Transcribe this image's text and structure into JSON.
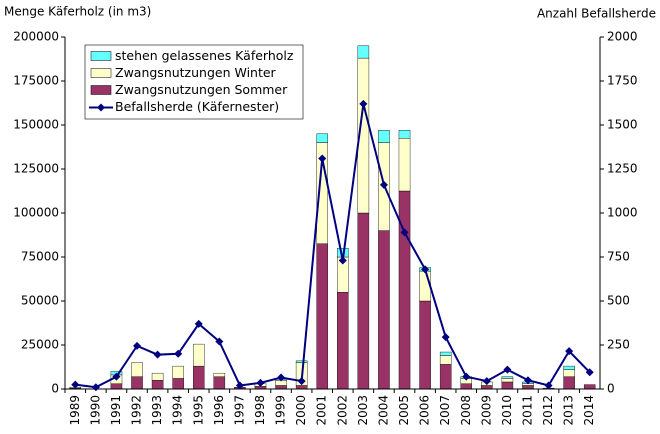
{
  "chart_data": {
    "type": "bar",
    "ylabel": "Menge Käferholz (in m3)",
    "y2label": "Anzahl Befallsherde",
    "categories": [
      "1989",
      "1990",
      "1991",
      "1992",
      "1993",
      "1994",
      "1995",
      "1996",
      "1997",
      "1998",
      "1999",
      "2000",
      "2001",
      "2002",
      "2003",
      "2004",
      "2005",
      "2006",
      "2007",
      "2008",
      "2009",
      "2010",
      "2011",
      "2012",
      "2013",
      "2014"
    ],
    "series": [
      {
        "name": "stehen gelassenes Käferholz",
        "type": "bar",
        "color": "#66ffff",
        "values": [
          0,
          0,
          2000,
          0,
          0,
          0,
          0,
          0,
          0,
          0,
          500,
          1000,
          5000,
          5000,
          7000,
          7000,
          4500,
          2000,
          2000,
          1000,
          0,
          1000,
          1000,
          0,
          2000,
          0
        ]
      },
      {
        "name": "Zwangsnutzungen Winter",
        "type": "bar",
        "color": "#ffffcc",
        "values": [
          500,
          0,
          5000,
          8000,
          4000,
          7000,
          12500,
          2000,
          0,
          1500,
          3000,
          13000,
          57500,
          20000,
          88000,
          50000,
          30000,
          17000,
          5000,
          3000,
          2000,
          2000,
          1000,
          0,
          4000,
          0
        ]
      },
      {
        "name": "Zwangsnutzungen Sommer",
        "type": "bar",
        "color": "#993366",
        "values": [
          500,
          0,
          3000,
          7000,
          5000,
          6000,
          13000,
          7000,
          1000,
          1500,
          2000,
          2000,
          82500,
          55000,
          100000,
          90000,
          112500,
          50000,
          14000,
          3000,
          2000,
          4000,
          2000,
          500,
          7000,
          2500
        ]
      },
      {
        "name": "Befallsherde (Käfernester)",
        "type": "line",
        "axis": "y2",
        "color": "#000080",
        "values": [
          25,
          10,
          70,
          245,
          195,
          200,
          370,
          270,
          20,
          35,
          65,
          45,
          1310,
          730,
          1620,
          1160,
          890,
          680,
          295,
          70,
          45,
          110,
          50,
          20,
          215,
          95
        ]
      }
    ],
    "ylim": [
      0,
      200000
    ],
    "yticks": [
      0,
      25000,
      50000,
      75000,
      100000,
      125000,
      150000,
      175000,
      200000
    ],
    "y2lim": [
      0,
      2000
    ],
    "y2ticks": [
      0,
      250,
      500,
      750,
      1000,
      1250,
      1500,
      1750,
      2000
    ],
    "legend": "upper left"
  }
}
